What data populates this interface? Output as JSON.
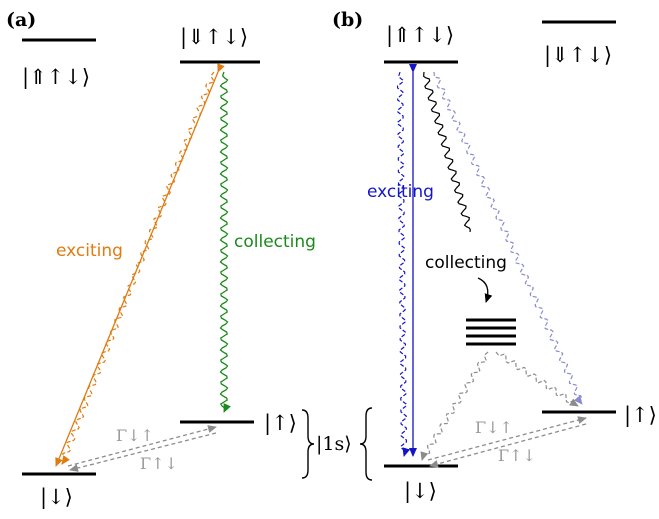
{
  "panels": {
    "a": {
      "label": "(a)",
      "trion_dark_ket": "|⇑↑↓⟩",
      "trion_bright_ket": "|⇓↑↓⟩",
      "spin_up_ket": "|↑⟩",
      "spin_down_ket": "|↓⟩",
      "exciting_label": "exciting",
      "collecting_label": "collecting",
      "rate_down_up": "Γ↓↑",
      "rate_up_down": "Γ↑↓",
      "ground_manifold_ket": "|1s⟩"
    },
    "b": {
      "label": "(b)",
      "trion_bright_ket": "|⇑↑↓⟩",
      "trion_dark_ket": "|⇓↑↓⟩",
      "spin_up_ket": "|↑⟩",
      "spin_down_ket": "|↓⟩",
      "exciting_label": "exciting",
      "collecting_label": "collecting",
      "rate_down_up": "Γ↓↑",
      "rate_up_down": "Γ↑↓"
    }
  },
  "colors": {
    "orange": "#e07b10",
    "green": "#1a8a1a",
    "blue": "#1515c8",
    "lavender": "#8a8ad0",
    "gray": "#8c8c8c",
    "black": "#000000"
  }
}
